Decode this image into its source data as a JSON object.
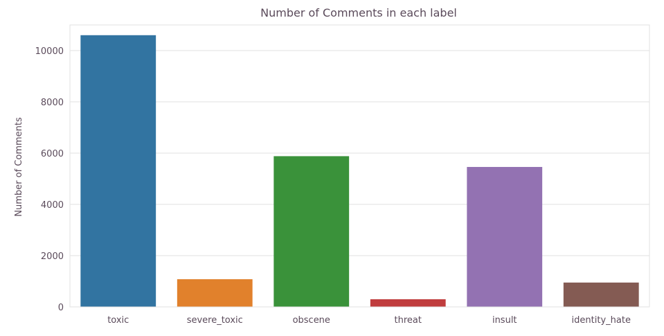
{
  "chart_data": {
    "type": "bar",
    "title": "Number of Comments in each label",
    "xlabel": "",
    "ylabel": "Number of Comments",
    "categories": [
      "toxic",
      "severe_toxic",
      "obscene",
      "threat",
      "insult",
      "identity_hate"
    ],
    "values": [
      10600,
      1080,
      5880,
      300,
      5460,
      950
    ],
    "colors": [
      "#3274a1",
      "#e1812c",
      "#3a923a",
      "#c03d3e",
      "#9372b2",
      "#845b53"
    ],
    "ylim": [
      0,
      11000
    ],
    "yticks": [
      0,
      2000,
      4000,
      6000,
      8000,
      10000
    ],
    "ytick_labels": [
      "0",
      "2000",
      "4000",
      "6000",
      "8000",
      "10000"
    ],
    "grid": "y",
    "legend": "none"
  }
}
